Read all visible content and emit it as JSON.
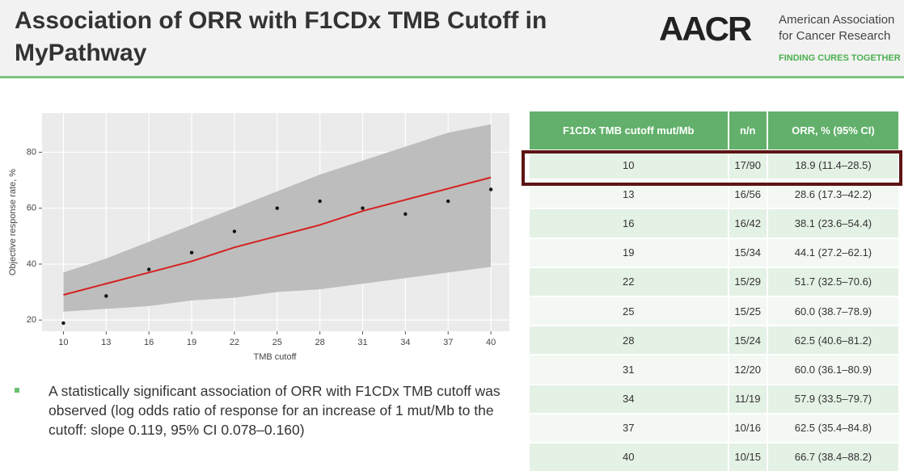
{
  "header": {
    "title": "Association of ORR with F1CDx TMB Cutoff in MyPathway",
    "logo": "AACR",
    "org_line1": "American Association",
    "org_line2": "for Cancer Research",
    "tagline": "FINDING CURES TOGETHER"
  },
  "chart_data": {
    "type": "scatter",
    "x_label": "TMB cutoff",
    "y_label": "Objective response rate, %",
    "x": [
      10,
      13,
      16,
      19,
      22,
      25,
      28,
      31,
      34,
      37,
      40
    ],
    "points": {
      "color": "#111111",
      "values": [
        18.9,
        28.6,
        38.1,
        44.1,
        51.7,
        60.0,
        62.5,
        60.0,
        57.9,
        62.5,
        66.7
      ]
    },
    "fit": {
      "color": "#d62020",
      "values": [
        29,
        33,
        37,
        41,
        46,
        50,
        54,
        59,
        63,
        67,
        71
      ]
    },
    "band": {
      "color": "#bdbdbd",
      "upper": [
        37,
        42,
        48,
        54,
        60,
        66,
        72,
        77,
        82,
        87,
        90
      ],
      "lower": [
        23,
        24,
        25,
        27,
        28,
        30,
        31,
        33,
        35,
        37,
        39
      ]
    },
    "xlim": [
      8.5,
      41.3
    ],
    "ylim": [
      16,
      94
    ],
    "xticks": [
      10,
      13,
      16,
      19,
      22,
      25,
      28,
      31,
      34,
      37,
      40
    ],
    "yticks": [
      20,
      40,
      60,
      80
    ],
    "grid": true
  },
  "bullet": "A statistically significant association of ORR with F1CDx TMB cutoff was observed (log odds ratio of response for an increase of 1 mut/Mb to the cutoff: slope 0.119, 95% CI 0.078–0.160)",
  "table": {
    "columns": [
      "F1CDx TMB cutoff mut/Mb",
      "n/n",
      "ORR, % (95% CI)"
    ],
    "rows": [
      [
        "10",
        "17/90",
        "18.9 (11.4–28.5)"
      ],
      [
        "13",
        "16/56",
        "28.6 (17.3–42.2)"
      ],
      [
        "16",
        "16/42",
        "38.1 (23.6–54.4)"
      ],
      [
        "19",
        "15/34",
        "44.1 (27.2–62.1)"
      ],
      [
        "22",
        "15/29",
        "51.7 (32.5–70.6)"
      ],
      [
        "25",
        "15/25",
        "60.0 (38.7–78.9)"
      ],
      [
        "28",
        "15/24",
        "62.5 (40.6–81.2)"
      ],
      [
        "31",
        "12/20",
        "60.0 (36.1–80.9)"
      ],
      [
        "34",
        "11/19",
        "57.9 (33.5–79.7)"
      ],
      [
        "37",
        "10/16",
        "62.5 (35.4–84.8)"
      ],
      [
        "40",
        "10/15",
        "66.7 (38.4–88.2)"
      ]
    ]
  }
}
